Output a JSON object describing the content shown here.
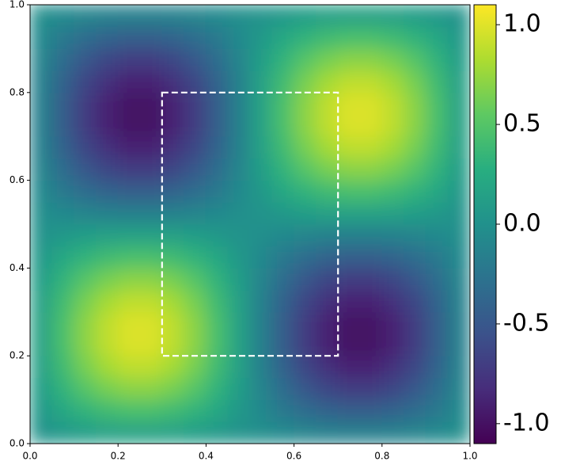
{
  "chart_data": {
    "type": "heatmap",
    "colormap": "viridis",
    "xlim": [
      0,
      1
    ],
    "ylim": [
      0,
      1
    ],
    "clim": [
      -1.1,
      1.1
    ],
    "xticks": [
      {
        "value": 0,
        "label": "0.0"
      },
      {
        "value": 0.2,
        "label": "0.2"
      },
      {
        "value": 0.4,
        "label": "0.4"
      },
      {
        "value": 0.6,
        "label": "0.6"
      },
      {
        "value": 0.8,
        "label": "0.8"
      },
      {
        "value": 1,
        "label": "1.0"
      }
    ],
    "yticks": [
      {
        "value": 0,
        "label": "0.0"
      },
      {
        "value": 0.2,
        "label": "0.2"
      },
      {
        "value": 0.4,
        "label": "0.4"
      },
      {
        "value": 0.6,
        "label": "0.6"
      },
      {
        "value": 0.8,
        "label": "0.8"
      },
      {
        "value": 1,
        "label": "1.0"
      }
    ],
    "cticks": [
      {
        "value": 1,
        "label": "1.0"
      },
      {
        "value": 0.5,
        "label": "0.5"
      },
      {
        "value": 0,
        "label": "0.0"
      },
      {
        "value": -0.5,
        "label": "-0.5"
      },
      {
        "value": -1,
        "label": "-1.0"
      }
    ],
    "annotation_rect": {
      "x": [
        0.3,
        0.7
      ],
      "y": [
        0.2,
        0.8
      ],
      "color": "#ffffff"
    },
    "z": [
      [
        0.02,
        0.07,
        0.11,
        0.14,
        0.15,
        0.15,
        0.14,
        0.11,
        0.07,
        0.02,
        -0.02,
        -0.07,
        -0.11,
        -0.14,
        -0.15,
        -0.15,
        -0.14,
        -0.11,
        -0.07,
        -0.02
      ],
      [
        0.07,
        0.21,
        0.32,
        0.4,
        0.45,
        0.45,
        0.4,
        0.32,
        0.21,
        0.07,
        -0.07,
        -0.21,
        -0.32,
        -0.4,
        -0.45,
        -0.45,
        -0.4,
        -0.32,
        -0.21,
        -0.07
      ],
      [
        0.11,
        0.32,
        0.5,
        0.63,
        0.7,
        0.7,
        0.63,
        0.5,
        0.32,
        0.11,
        -0.11,
        -0.32,
        -0.5,
        -0.63,
        -0.7,
        -0.7,
        -0.63,
        -0.5,
        -0.32,
        -0.11
      ],
      [
        0.14,
        0.4,
        0.63,
        0.79,
        0.88,
        0.88,
        0.79,
        0.63,
        0.4,
        0.14,
        -0.14,
        -0.4,
        -0.63,
        -0.79,
        -0.88,
        -0.88,
        -0.79,
        -0.63,
        -0.4,
        -0.14
      ],
      [
        0.15,
        0.45,
        0.7,
        0.88,
        0.98,
        0.98,
        0.88,
        0.7,
        0.45,
        0.15,
        -0.15,
        -0.45,
        -0.7,
        -0.88,
        -0.98,
        -0.98,
        -0.88,
        -0.7,
        -0.45,
        -0.15
      ],
      [
        0.15,
        0.45,
        0.7,
        0.88,
        0.98,
        0.98,
        0.88,
        0.7,
        0.45,
        0.15,
        -0.15,
        -0.45,
        -0.7,
        -0.88,
        -0.98,
        -0.98,
        -0.88,
        -0.7,
        -0.45,
        -0.15
      ],
      [
        0.14,
        0.4,
        0.63,
        0.79,
        0.88,
        0.88,
        0.79,
        0.63,
        0.4,
        0.14,
        -0.14,
        -0.4,
        -0.63,
        -0.79,
        -0.88,
        -0.88,
        -0.79,
        -0.63,
        -0.4,
        -0.14
      ],
      [
        0.11,
        0.32,
        0.5,
        0.63,
        0.7,
        0.7,
        0.63,
        0.5,
        0.32,
        0.11,
        -0.11,
        -0.32,
        -0.5,
        -0.63,
        -0.7,
        -0.7,
        -0.63,
        -0.5,
        -0.32,
        -0.11
      ],
      [
        0.07,
        0.21,
        0.32,
        0.4,
        0.45,
        0.45,
        0.4,
        0.32,
        0.21,
        0.07,
        -0.07,
        -0.21,
        -0.32,
        -0.4,
        -0.45,
        -0.45,
        -0.4,
        -0.32,
        -0.21,
        -0.07
      ],
      [
        0.02,
        0.07,
        0.11,
        0.14,
        0.15,
        0.15,
        0.14,
        0.11,
        0.07,
        0.02,
        -0.02,
        -0.07,
        -0.11,
        -0.14,
        -0.15,
        -0.15,
        -0.14,
        -0.11,
        -0.07,
        -0.02
      ],
      [
        -0.02,
        -0.07,
        -0.11,
        -0.14,
        -0.15,
        -0.15,
        -0.14,
        -0.11,
        -0.07,
        -0.02,
        0.02,
        0.07,
        0.11,
        0.14,
        0.15,
        0.15,
        0.14,
        0.11,
        0.07,
        0.02
      ],
      [
        -0.07,
        -0.21,
        -0.32,
        -0.4,
        -0.45,
        -0.45,
        -0.4,
        -0.32,
        -0.21,
        -0.07,
        0.07,
        0.21,
        0.32,
        0.4,
        0.45,
        0.45,
        0.4,
        0.32,
        0.21,
        0.07
      ],
      [
        -0.11,
        -0.32,
        -0.5,
        -0.63,
        -0.7,
        -0.7,
        -0.63,
        -0.5,
        -0.32,
        -0.11,
        0.11,
        0.32,
        0.5,
        0.63,
        0.7,
        0.7,
        0.63,
        0.5,
        0.32,
        0.11
      ],
      [
        -0.14,
        -0.4,
        -0.63,
        -0.79,
        -0.88,
        -0.88,
        -0.79,
        -0.63,
        -0.4,
        -0.14,
        0.14,
        0.4,
        0.63,
        0.79,
        0.88,
        0.88,
        0.79,
        0.63,
        0.4,
        0.14
      ],
      [
        -0.15,
        -0.45,
        -0.7,
        -0.88,
        -0.98,
        -0.98,
        -0.88,
        -0.7,
        -0.45,
        -0.15,
        0.15,
        0.45,
        0.7,
        0.88,
        0.98,
        0.98,
        0.88,
        0.7,
        0.45,
        0.15
      ],
      [
        -0.15,
        -0.45,
        -0.7,
        -0.88,
        -0.98,
        -0.98,
        -0.88,
        -0.7,
        -0.45,
        -0.15,
        0.15,
        0.45,
        0.7,
        0.88,
        0.98,
        0.98,
        0.88,
        0.7,
        0.45,
        0.15
      ],
      [
        -0.14,
        -0.4,
        -0.63,
        -0.79,
        -0.88,
        -0.88,
        -0.79,
        -0.63,
        -0.4,
        -0.14,
        0.14,
        0.4,
        0.63,
        0.79,
        0.88,
        0.88,
        0.79,
        0.63,
        0.4,
        0.14
      ],
      [
        -0.11,
        -0.32,
        -0.5,
        -0.63,
        -0.7,
        -0.7,
        -0.63,
        -0.5,
        -0.32,
        -0.11,
        0.11,
        0.32,
        0.5,
        0.63,
        0.7,
        0.7,
        0.63,
        0.5,
        0.32,
        0.11
      ],
      [
        -0.07,
        -0.21,
        -0.32,
        -0.4,
        -0.45,
        -0.45,
        -0.4,
        -0.32,
        -0.21,
        -0.07,
        0.07,
        0.21,
        0.32,
        0.4,
        0.45,
        0.45,
        0.4,
        0.32,
        0.21,
        0.07
      ],
      [
        -0.02,
        -0.07,
        -0.11,
        -0.14,
        -0.15,
        -0.15,
        -0.14,
        -0.11,
        -0.07,
        -0.02,
        0.02,
        0.07,
        0.11,
        0.14,
        0.15,
        0.15,
        0.14,
        0.11,
        0.07,
        0.02
      ]
    ]
  }
}
